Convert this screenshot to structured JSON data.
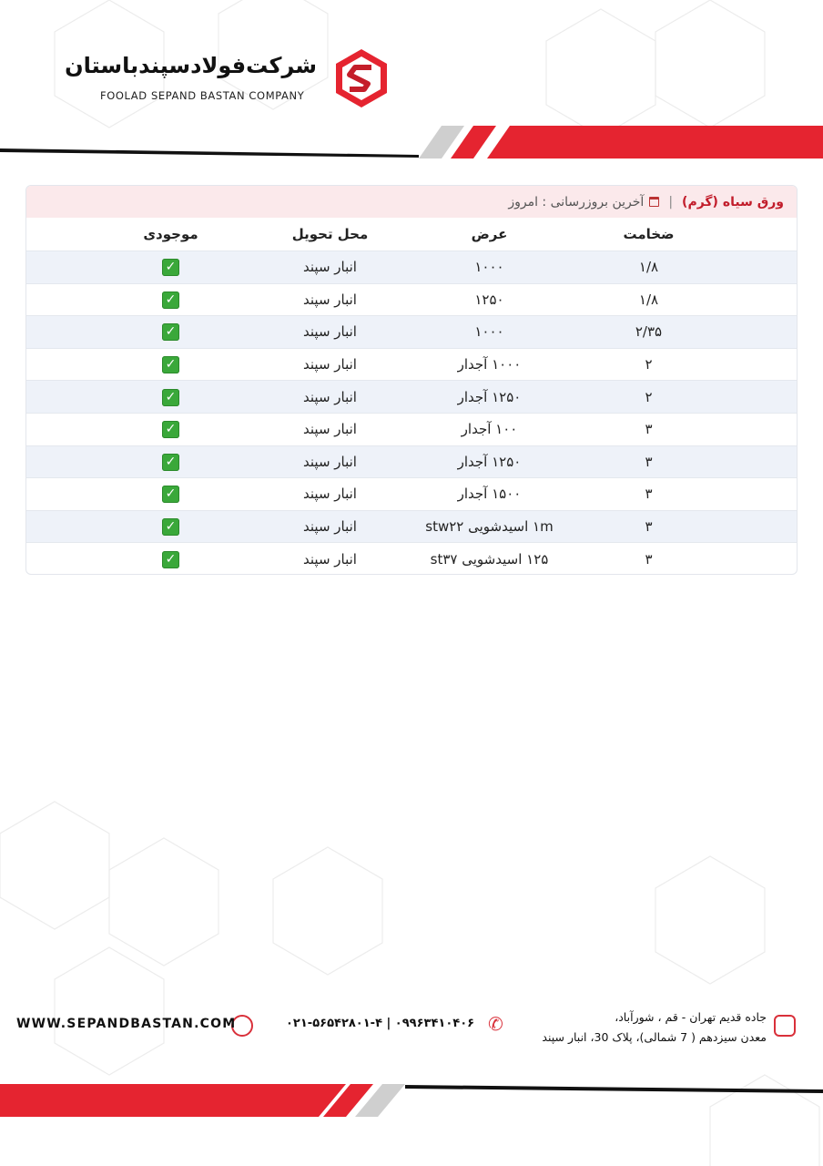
{
  "brand": {
    "name_fa": "شرکت‌فولادسپندباستان",
    "name_en": "FOOLAD SEPAND BASTAN COMPANY",
    "logo_letter": "S",
    "accent": "#e52430"
  },
  "card": {
    "title": "ورق سیاه (گرم)",
    "separator": "|",
    "calendar_icon": "calendar-icon",
    "updated": "آخرین بروزرسانی : امروز"
  },
  "table": {
    "headers": [
      "ضخامت",
      "عرض",
      "محل تحویل",
      "موجودی"
    ],
    "rows": [
      {
        "thickness": "۱/۸",
        "width": "۱۰۰۰",
        "location": "انبار سپند",
        "stock": "✓"
      },
      {
        "thickness": "۱/۸",
        "width": "۱۲۵۰",
        "location": "انبار سپند",
        "stock": "✓"
      },
      {
        "thickness": "۲/۳۵",
        "width": "۱۰۰۰",
        "location": "انبار سپند",
        "stock": "✓"
      },
      {
        "thickness": "۲",
        "width": "۱۰۰۰ آجدار",
        "location": "انبار سپند",
        "stock": "✓"
      },
      {
        "thickness": "۲",
        "width": "۱۲۵۰ آجدار",
        "location": "انبار سپند",
        "stock": "✓"
      },
      {
        "thickness": "۳",
        "width": "۱۰۰ آجدار",
        "location": "انبار سپند",
        "stock": "✓"
      },
      {
        "thickness": "۳",
        "width": "۱۲۵۰ آجدار",
        "location": "انبار سپند",
        "stock": "✓"
      },
      {
        "thickness": "۳",
        "width": "۱۵۰۰ آجدار",
        "location": "انبار سپند",
        "stock": "✓"
      },
      {
        "thickness": "۳",
        "width": "۱m اسیدشویی stw۲۲",
        "location": "انبار سپند",
        "stock": "✓"
      },
      {
        "thickness": "۳",
        "width": "۱۲۵ اسیدشویی st۳۷",
        "location": "انبار سپند",
        "stock": "✓"
      }
    ]
  },
  "footer": {
    "address_line1": "جاده قدیم تهران - قم ، شورآباد،",
    "address_line2": "معدن سیزدهم ( 7 شمالی)، پلاک 30، انبار سپند",
    "phone": "۰۲۱-۵۶۵۴۲۸۰۱-۴ | ۰۹۹۶۳۴۱۰۴۰۶",
    "website": "WWW.SEPANDBASTAN.COM"
  }
}
